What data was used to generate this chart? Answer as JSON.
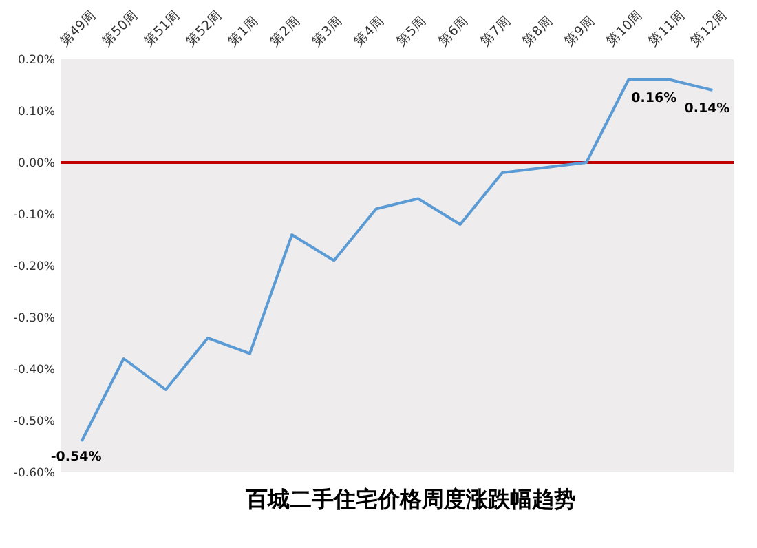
{
  "chart_data": {
    "type": "line",
    "title": "百城二手住宅价格周度涨跌幅趋势",
    "categories": [
      "第49周",
      "第50周",
      "第51周",
      "第52周",
      "第1周",
      "第2周",
      "第3周",
      "第4周",
      "第5周",
      "第6周",
      "第7周",
      "第8周",
      "第9周",
      "第10周",
      "第11周",
      "第12周"
    ],
    "series": [
      {
        "color": "#5b9bd5",
        "values": [
          -0.54,
          -0.38,
          -0.44,
          -0.34,
          -0.37,
          -0.14,
          -0.19,
          -0.09,
          -0.07,
          -0.12,
          -0.02,
          -0.01,
          0,
          0.16,
          0.16,
          0.14
        ],
        "value_labels": [
          "-0.54%",
          null,
          null,
          null,
          null,
          null,
          null,
          null,
          null,
          null,
          null,
          null,
          null,
          null,
          "0.16%",
          "0.14%"
        ]
      }
    ],
    "ylim": [
      -0.6,
      0.2
    ],
    "yticks": [
      {
        "value": 0.2,
        "label": "0.20%"
      },
      {
        "value": 0.1,
        "label": "0.10%"
      },
      {
        "value": 0,
        "label": "0.00%"
      },
      {
        "value": -0.1,
        "label": "-0.10%"
      },
      {
        "value": -0.2,
        "label": "-0.20%"
      },
      {
        "value": -0.3,
        "label": "-0.30%"
      },
      {
        "value": -0.4,
        "label": "-0.40%"
      },
      {
        "value": -0.5,
        "label": "-0.50%"
      },
      {
        "value": -0.6,
        "label": "-0.60%"
      }
    ],
    "ref_lines": [
      {
        "axis": "y",
        "value": 0,
        "color": "#c00000"
      }
    ],
    "marker": "none",
    "line_style": "solid",
    "grid": false
  }
}
